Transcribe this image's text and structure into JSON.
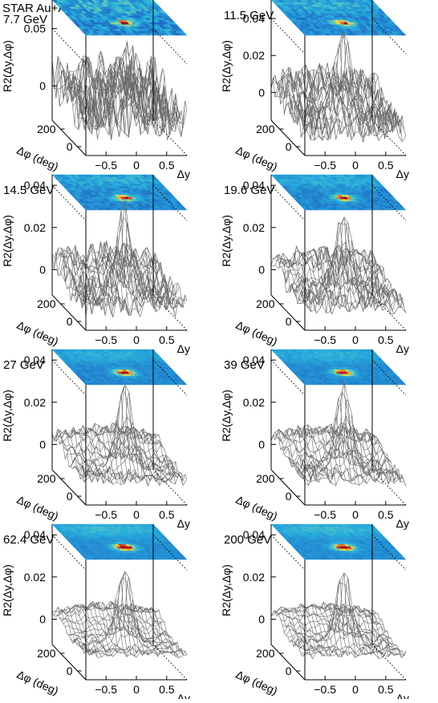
{
  "figure": {
    "experiment_label": "STAR Au+Au",
    "colors": {
      "box_line": "#000000",
      "mesh_line": "#6a6a6a",
      "dotted_line": "#000000",
      "heatmap_low": "#1a2f8f",
      "heatmap_mid": "#1f9fd0",
      "heatmap_high": "#b8102a",
      "heatmap_peak": "#ffd53a"
    }
  },
  "chart_data": [
    {
      "type": "heatmap",
      "surface": "lego-mesh with top-view color projection",
      "energy_label": "7.7 GeV",
      "zlabel": "R2(Δy,Δφ)",
      "xlabel": "Δy",
      "ylabel": "Δφ (deg)",
      "xticks": [
        "−0.5",
        "0",
        "0.5"
      ],
      "yticks": [
        "200",
        "0"
      ],
      "zticks": [
        "0.05",
        "0"
      ],
      "zticks_values": [
        0.05,
        0
      ],
      "zlim": [
        -0.03,
        0.075
      ],
      "peak_value": 0.065,
      "peak_location": {
        "dy": 0,
        "dphi": 0
      },
      "noise_level": 0.02
    },
    {
      "type": "heatmap",
      "surface": "lego-mesh with top-view color projection",
      "energy_label": "11.5 GeV",
      "zlabel": "R2(Δy,Δφ)",
      "xlabel": "Δy",
      "ylabel": "Δφ (deg)",
      "xticks": [
        "−0.5",
        "0",
        "0.5"
      ],
      "yticks": [
        "200",
        "0"
      ],
      "zticks": [
        "0.04",
        "0.02",
        "0"
      ],
      "zticks_values": [
        0.04,
        0.02,
        0
      ],
      "zlim": [
        -0.015,
        0.05
      ],
      "peak_value": 0.044,
      "peak_location": {
        "dy": 0,
        "dphi": 0
      },
      "noise_level": 0.008
    },
    {
      "type": "heatmap",
      "surface": "lego-mesh with top-view color projection",
      "energy_label": "14.5 GeV",
      "zlabel": "R2(Δy,Δφ)",
      "xlabel": "Δy",
      "ylabel": "Δφ (deg)",
      "xticks": [
        "−0.5",
        "0",
        "0.5"
      ],
      "yticks": [
        "200",
        "0"
      ],
      "zticks": [
        "0.04",
        "0.02",
        "0"
      ],
      "zticks_values": [
        0.04,
        0.02,
        0
      ],
      "zlim": [
        -0.012,
        0.045
      ],
      "peak_value": 0.04,
      "peak_location": {
        "dy": 0,
        "dphi": 0
      },
      "noise_level": 0.006
    },
    {
      "type": "heatmap",
      "surface": "lego-mesh with top-view color projection",
      "energy_label": "19.6 GeV",
      "zlabel": "R2(Δy,Δφ)",
      "xlabel": "Δy",
      "ylabel": "Δφ (deg)",
      "xticks": [
        "−0.5",
        "0",
        "0.5"
      ],
      "yticks": [
        "200",
        "0"
      ],
      "zticks": [
        "0.04",
        "0.02",
        "0"
      ],
      "zticks_values": [
        0.04,
        0.02,
        0
      ],
      "zlim": [
        -0.012,
        0.045
      ],
      "peak_value": 0.04,
      "peak_location": {
        "dy": 0,
        "dphi": 0
      },
      "noise_level": 0.005
    },
    {
      "type": "heatmap",
      "surface": "lego-mesh with top-view color projection",
      "energy_label": "27 GeV",
      "zlabel": "R2(Δy,Δφ)",
      "xlabel": "Δy",
      "ylabel": "Δφ (deg)",
      "xticks": [
        "−0.5",
        "0",
        "0.5"
      ],
      "yticks": [
        "200",
        "0"
      ],
      "zticks": [
        "0.04",
        "0.02",
        "0"
      ],
      "zticks_values": [
        0.04,
        0.02,
        0
      ],
      "zlim": [
        -0.012,
        0.045
      ],
      "peak_value": 0.04,
      "peak_location": {
        "dy": 0,
        "dphi": 0
      },
      "noise_level": 0.003
    },
    {
      "type": "heatmap",
      "surface": "lego-mesh with top-view color projection",
      "energy_label": "39 GeV",
      "zlabel": "R2(Δy,Δφ)",
      "xlabel": "Δy",
      "ylabel": "Δφ (deg)",
      "xticks": [
        "−0.5",
        "0",
        "0.5"
      ],
      "yticks": [
        "200",
        "0"
      ],
      "zticks": [
        "0.04",
        "0.02",
        "0"
      ],
      "zticks_values": [
        0.04,
        0.02,
        0
      ],
      "zlim": [
        -0.012,
        0.045
      ],
      "peak_value": 0.04,
      "peak_location": {
        "dy": 0,
        "dphi": 0
      },
      "noise_level": 0.003
    },
    {
      "type": "heatmap",
      "surface": "lego-mesh with top-view color projection",
      "energy_label": "62.4 GeV",
      "zlabel": "R2(Δy,Δφ)",
      "xlabel": "Δy",
      "ylabel": "Δφ (deg)",
      "xticks": [
        "−0.5",
        "0",
        "0.5"
      ],
      "yticks": [
        "200",
        "0"
      ],
      "zticks": [
        "0.04",
        "0.02",
        "0"
      ],
      "zticks_values": [
        0.04,
        0.02,
        0
      ],
      "zlim": [
        -0.012,
        0.045
      ],
      "peak_value": 0.036,
      "peak_location": {
        "dy": 0,
        "dphi": 0
      },
      "noise_level": 0.002
    },
    {
      "type": "heatmap",
      "surface": "lego-mesh with top-view color projection",
      "energy_label": "200 GeV",
      "zlabel": "R2(Δy,Δφ)",
      "xlabel": "Δy",
      "ylabel": "Δφ (deg)",
      "xticks": [
        "−0.5",
        "0",
        "0.5"
      ],
      "yticks": [
        "200",
        "0"
      ],
      "zticks": [
        "0.04",
        "0.02",
        "0"
      ],
      "zticks_values": [
        0.04,
        0.02,
        0
      ],
      "zlim": [
        -0.012,
        0.045
      ],
      "peak_value": 0.034,
      "peak_location": {
        "dy": 0,
        "dphi": 0
      },
      "noise_level": 0.002
    }
  ]
}
